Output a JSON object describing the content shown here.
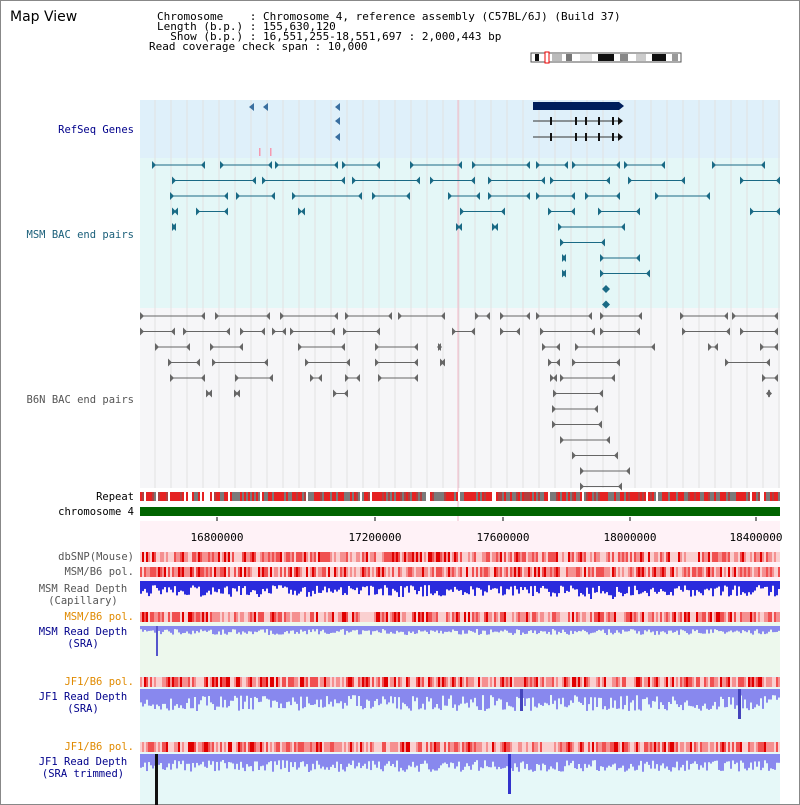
{
  "title": "Map View",
  "header": {
    "chromosome_line": "Chromosome    : Chromosome 4, reference assembly (C57BL/6J) (Build 37)",
    "length_line": "Length (b.p.) : 155,630,120",
    "show_line": "  Show (b.p.) : 16,551,255-18,551,697 : 2,000,443 bp",
    "coverage_line": "Read coverage check span : 10,000"
  },
  "tracks": {
    "refseq": "RefSeq Genes",
    "msm_bac": "MSM BAC end pairs",
    "b6n_bac": "B6N BAC end pairs",
    "repeat": "Repeat",
    "chromosome": "chromosome 4",
    "dbsnp": "dbSNP(Mouse)",
    "msm_b6_pol": "MSM/B6 pol.",
    "msm_depth_cap_1": "MSM Read Depth",
    "msm_depth_cap_2": "(Capillary)",
    "msm_b6_pol_2": "MSM/B6 pol.",
    "msm_depth_sra_1": "MSM Read Depth",
    "msm_depth_sra_2": "(SRA)",
    "jf1_b6_pol": "JF1/B6 pol.",
    "jf1_depth_sra_1": "JF1 Read Depth",
    "jf1_depth_sra_2": "(SRA)",
    "jf1_b6_pol_2": "JF1/B6 pol.",
    "jf1_depth_trim_1": "JF1 Read Depth",
    "jf1_depth_trim_2": "(SRA trimmed)"
  },
  "axis": {
    "ticks": [
      "16800000",
      "17200000",
      "17600000",
      "18000000",
      "18400000"
    ]
  },
  "colors": {
    "refseq_bg": "#dff0fa",
    "msm_bg": "#e4f7f7",
    "b6n_bg": "#f6f6f8",
    "chrom_bar": "#006400",
    "gene": "#001f5c",
    "msm_feature": "#1a6a85",
    "b6n_feature": "#666666",
    "depth_blue": "#2b2bdd",
    "depth_sra": "#8888ee"
  }
}
